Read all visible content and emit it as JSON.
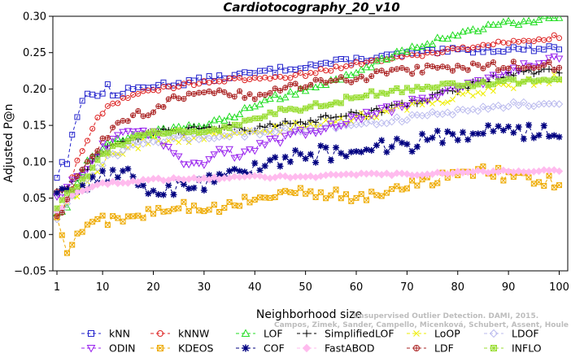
{
  "chart_data": {
    "type": "line",
    "title": "Cardiotocography_20_v10",
    "xlabel": "Neighborhood size",
    "ylabel": "Adjusted P@n",
    "xlim": [
      1,
      100
    ],
    "ylim": [
      -0.05,
      0.3
    ],
    "xticks": [
      1,
      10,
      20,
      30,
      40,
      50,
      60,
      70,
      80,
      90,
      100
    ],
    "yticks": [
      -0.05,
      0.0,
      0.05,
      0.1,
      0.15,
      0.2,
      0.25,
      0.3
    ],
    "ytick_labels": [
      "−0.05",
      "0.00",
      "0.05",
      "0.10",
      "0.15",
      "0.20",
      "0.25",
      "0.30"
    ],
    "legend_position": "bottom",
    "watermark": [
      "Unsupervised Outlier Detection. DAMI, 2015.",
      "Campos, Zimek, Sander, Campello, Micenková, Schubert, Assent, Houle"
    ],
    "series": [
      {
        "name": "kNN",
        "color": "#2222cc",
        "marker": "square",
        "knots": [
          [
            1,
            0.08
          ],
          [
            2,
            0.1
          ],
          [
            3,
            0.095
          ],
          [
            4,
            0.14
          ],
          [
            5,
            0.165
          ],
          [
            6,
            0.185
          ],
          [
            7,
            0.19
          ],
          [
            8,
            0.192
          ],
          [
            10,
            0.195
          ],
          [
            11,
            0.205
          ],
          [
            12,
            0.19
          ],
          [
            15,
            0.198
          ],
          [
            20,
            0.205
          ],
          [
            25,
            0.208
          ],
          [
            30,
            0.213
          ],
          [
            40,
            0.222
          ],
          [
            50,
            0.232
          ],
          [
            60,
            0.24
          ],
          [
            70,
            0.248
          ],
          [
            80,
            0.253
          ],
          [
            90,
            0.255
          ],
          [
            100,
            0.257
          ]
        ],
        "noise": 0.004
      },
      {
        "name": "kNNW",
        "color": "#dd2222",
        "marker": "circle",
        "knots": [
          [
            1,
            0.06
          ],
          [
            3,
            0.06
          ],
          [
            5,
            0.1
          ],
          [
            7,
            0.13
          ],
          [
            9,
            0.16
          ],
          [
            11,
            0.175
          ],
          [
            13,
            0.183
          ],
          [
            15,
            0.19
          ],
          [
            20,
            0.198
          ],
          [
            25,
            0.205
          ],
          [
            30,
            0.21
          ],
          [
            40,
            0.214
          ],
          [
            50,
            0.22
          ],
          [
            60,
            0.235
          ],
          [
            70,
            0.245
          ],
          [
            80,
            0.255
          ],
          [
            90,
            0.265
          ],
          [
            100,
            0.272
          ]
        ],
        "noise": 0.003
      },
      {
        "name": "LOF",
        "color": "#22dd22",
        "marker": "triangle",
        "knots": [
          [
            1,
            0.03
          ],
          [
            3,
            0.04
          ],
          [
            5,
            0.07
          ],
          [
            7,
            0.1
          ],
          [
            10,
            0.12
          ],
          [
            15,
            0.135
          ],
          [
            20,
            0.14
          ],
          [
            25,
            0.145
          ],
          [
            30,
            0.15
          ],
          [
            35,
            0.16
          ],
          [
            40,
            0.18
          ],
          [
            45,
            0.19
          ],
          [
            50,
            0.2
          ],
          [
            55,
            0.21
          ],
          [
            60,
            0.22
          ],
          [
            65,
            0.24
          ],
          [
            70,
            0.255
          ],
          [
            75,
            0.265
          ],
          [
            80,
            0.275
          ],
          [
            85,
            0.285
          ],
          [
            90,
            0.29
          ],
          [
            95,
            0.295
          ],
          [
            100,
            0.3
          ]
        ],
        "noise": 0.004
      },
      {
        "name": "SimplifiedLOF",
        "color": "#000000",
        "marker": "plus",
        "knots": [
          [
            1,
            0.06
          ],
          [
            3,
            0.065
          ],
          [
            5,
            0.08
          ],
          [
            8,
            0.1
          ],
          [
            10,
            0.115
          ],
          [
            15,
            0.13
          ],
          [
            20,
            0.14
          ],
          [
            25,
            0.14
          ],
          [
            30,
            0.145
          ],
          [
            35,
            0.15
          ],
          [
            40,
            0.145
          ],
          [
            45,
            0.15
          ],
          [
            50,
            0.155
          ],
          [
            55,
            0.16
          ],
          [
            60,
            0.165
          ],
          [
            65,
            0.17
          ],
          [
            70,
            0.18
          ],
          [
            75,
            0.19
          ],
          [
            80,
            0.2
          ],
          [
            85,
            0.21
          ],
          [
            90,
            0.22
          ],
          [
            95,
            0.225
          ],
          [
            100,
            0.225
          ]
        ],
        "noise": 0.005
      },
      {
        "name": "LoOP",
        "color": "#eeee00",
        "marker": "x",
        "knots": [
          [
            1,
            0.03
          ],
          [
            4,
            0.05
          ],
          [
            8,
            0.08
          ],
          [
            10,
            0.1
          ],
          [
            15,
            0.12
          ],
          [
            20,
            0.13
          ],
          [
            25,
            0.13
          ],
          [
            30,
            0.135
          ],
          [
            40,
            0.14
          ],
          [
            50,
            0.15
          ],
          [
            60,
            0.16
          ],
          [
            70,
            0.175
          ],
          [
            80,
            0.19
          ],
          [
            90,
            0.205
          ],
          [
            100,
            0.215
          ]
        ],
        "noise": 0.006
      },
      {
        "name": "LDOF",
        "color": "#bbbbee",
        "marker": "diamond",
        "knots": [
          [
            1,
            0.02
          ],
          [
            4,
            0.05
          ],
          [
            8,
            0.08
          ],
          [
            10,
            0.1
          ],
          [
            15,
            0.12
          ],
          [
            20,
            0.13
          ],
          [
            30,
            0.135
          ],
          [
            40,
            0.14
          ],
          [
            50,
            0.145
          ],
          [
            60,
            0.15
          ],
          [
            70,
            0.16
          ],
          [
            80,
            0.17
          ],
          [
            90,
            0.178
          ],
          [
            100,
            0.182
          ]
        ],
        "noise": 0.005
      },
      {
        "name": "ODIN",
        "color": "#9922ee",
        "marker": "triangle-down",
        "knots": [
          [
            1,
            0.05
          ],
          [
            3,
            0.06
          ],
          [
            5,
            0.08
          ],
          [
            8,
            0.1
          ],
          [
            10,
            0.12
          ],
          [
            15,
            0.14
          ],
          [
            20,
            0.14
          ],
          [
            23,
            0.12
          ],
          [
            26,
            0.1
          ],
          [
            30,
            0.1
          ],
          [
            33,
            0.115
          ],
          [
            36,
            0.11
          ],
          [
            40,
            0.12
          ],
          [
            45,
            0.13
          ],
          [
            50,
            0.14
          ],
          [
            55,
            0.15
          ],
          [
            60,
            0.16
          ],
          [
            65,
            0.17
          ],
          [
            70,
            0.18
          ],
          [
            75,
            0.19
          ],
          [
            80,
            0.2
          ],
          [
            85,
            0.21
          ],
          [
            90,
            0.225
          ],
          [
            95,
            0.235
          ],
          [
            100,
            0.245
          ]
        ],
        "noise": 0.006
      },
      {
        "name": "KDEOS",
        "color": "#eeaa00",
        "marker": "boxx",
        "knots": [
          [
            1,
            0.02
          ],
          [
            3,
            -0.02
          ],
          [
            5,
            0.005
          ],
          [
            8,
            0.015
          ],
          [
            10,
            0.02
          ],
          [
            15,
            0.02
          ],
          [
            20,
            0.035
          ],
          [
            25,
            0.04
          ],
          [
            30,
            0.03
          ],
          [
            35,
            0.04
          ],
          [
            40,
            0.05
          ],
          [
            45,
            0.055
          ],
          [
            50,
            0.06
          ],
          [
            55,
            0.055
          ],
          [
            60,
            0.05
          ],
          [
            65,
            0.055
          ],
          [
            70,
            0.065
          ],
          [
            75,
            0.075
          ],
          [
            80,
            0.085
          ],
          [
            85,
            0.09
          ],
          [
            90,
            0.08
          ],
          [
            95,
            0.075
          ],
          [
            100,
            0.072
          ]
        ],
        "noise": 0.008
      },
      {
        "name": "COF",
        "color": "#000080",
        "marker": "star",
        "knots": [
          [
            1,
            0.05
          ],
          [
            3,
            0.065
          ],
          [
            5,
            0.07
          ],
          [
            8,
            0.075
          ],
          [
            10,
            0.08
          ],
          [
            15,
            0.08
          ],
          [
            20,
            0.06
          ],
          [
            25,
            0.065
          ],
          [
            30,
            0.07
          ],
          [
            35,
            0.085
          ],
          [
            40,
            0.095
          ],
          [
            45,
            0.1
          ],
          [
            50,
            0.11
          ],
          [
            55,
            0.11
          ],
          [
            60,
            0.115
          ],
          [
            65,
            0.12
          ],
          [
            70,
            0.125
          ],
          [
            75,
            0.13
          ],
          [
            80,
            0.14
          ],
          [
            85,
            0.145
          ],
          [
            90,
            0.145
          ],
          [
            95,
            0.14
          ],
          [
            100,
            0.14
          ]
        ],
        "noise": 0.012
      },
      {
        "name": "FastABOD",
        "color": "#ffbbee",
        "marker": "diamond-filled",
        "knots": [
          [
            1,
            0.03
          ],
          [
            4,
            0.055
          ],
          [
            8,
            0.065
          ],
          [
            10,
            0.07
          ],
          [
            20,
            0.075
          ],
          [
            30,
            0.077
          ],
          [
            40,
            0.079
          ],
          [
            50,
            0.08
          ],
          [
            60,
            0.082
          ],
          [
            70,
            0.083
          ],
          [
            80,
            0.085
          ],
          [
            90,
            0.087
          ],
          [
            100,
            0.088
          ]
        ],
        "noise": 0.002
      },
      {
        "name": "LDF",
        "color": "#aa2222",
        "marker": "circle-plus",
        "knots": [
          [
            1,
            0.02
          ],
          [
            3,
            0.045
          ],
          [
            5,
            0.08
          ],
          [
            8,
            0.105
          ],
          [
            10,
            0.13
          ],
          [
            15,
            0.16
          ],
          [
            20,
            0.17
          ],
          [
            25,
            0.19
          ],
          [
            30,
            0.2
          ],
          [
            35,
            0.195
          ],
          [
            40,
            0.19
          ],
          [
            45,
            0.2
          ],
          [
            50,
            0.205
          ],
          [
            55,
            0.21
          ],
          [
            60,
            0.215
          ],
          [
            70,
            0.225
          ],
          [
            80,
            0.23
          ],
          [
            90,
            0.232
          ],
          [
            100,
            0.232
          ]
        ],
        "noise": 0.006
      },
      {
        "name": "INFLO",
        "color": "#99dd33",
        "marker": "box-star",
        "knots": [
          [
            1,
            0.04
          ],
          [
            4,
            0.06
          ],
          [
            8,
            0.09
          ],
          [
            10,
            0.11
          ],
          [
            15,
            0.13
          ],
          [
            20,
            0.14
          ],
          [
            25,
            0.14
          ],
          [
            30,
            0.14
          ],
          [
            35,
            0.15
          ],
          [
            40,
            0.16
          ],
          [
            45,
            0.17
          ],
          [
            50,
            0.175
          ],
          [
            55,
            0.18
          ],
          [
            60,
            0.19
          ],
          [
            65,
            0.195
          ],
          [
            70,
            0.2
          ],
          [
            80,
            0.205
          ],
          [
            90,
            0.21
          ],
          [
            100,
            0.215
          ]
        ],
        "noise": 0.004
      }
    ]
  }
}
